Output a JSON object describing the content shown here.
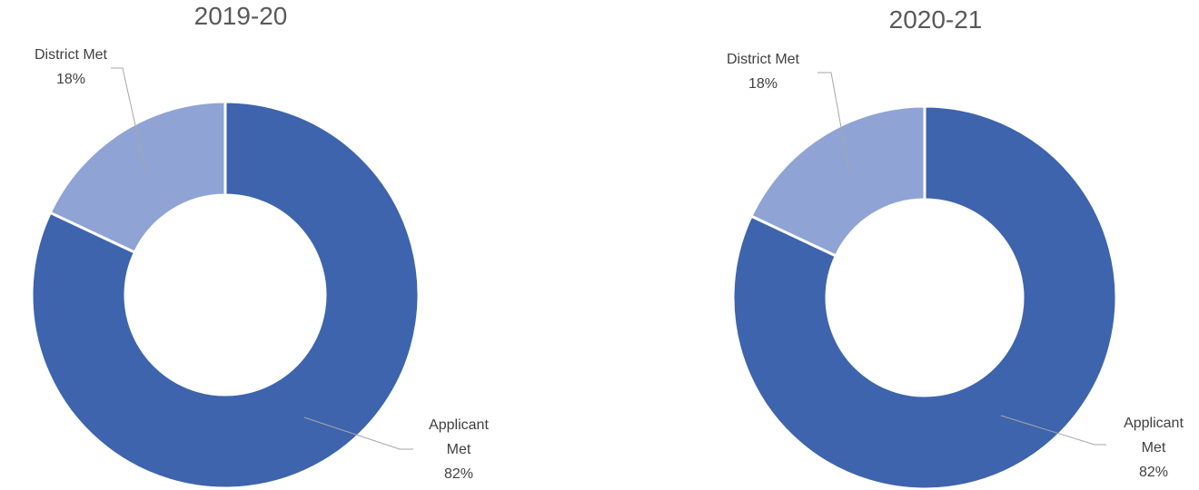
{
  "chart_data": [
    {
      "type": "donut",
      "title": "2019-20",
      "categories": [
        "Applicant Met",
        "District Met"
      ],
      "values": [
        82,
        18
      ],
      "value_labels": [
        "82%",
        "18%"
      ],
      "colors": [
        "#3d64ad",
        "#8fa3d4"
      ]
    },
    {
      "type": "donut",
      "title": "2020-21",
      "categories": [
        "Applicant Met",
        "District Met"
      ],
      "values": [
        82,
        18
      ],
      "value_labels": [
        "82%",
        "18%"
      ],
      "colors": [
        "#3d64ad",
        "#8fa3d4"
      ]
    }
  ]
}
